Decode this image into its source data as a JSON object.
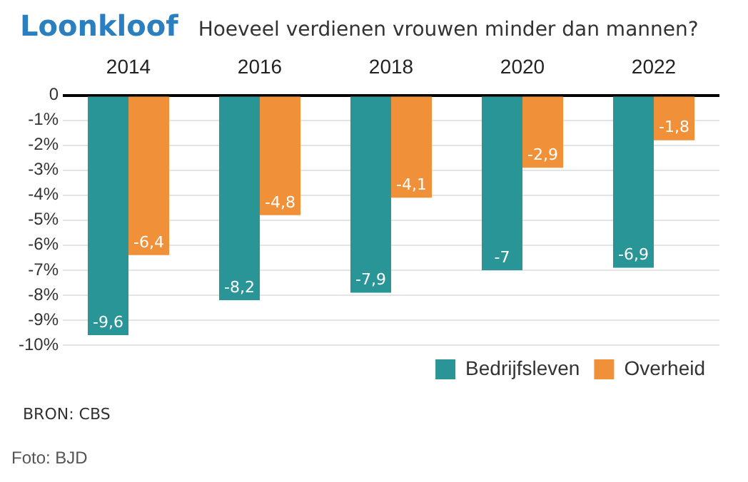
{
  "chart_data": {
    "type": "bar",
    "title": "Loonkloof",
    "subtitle": "Hoeveel verdienen vrouwen minder dan mannen?",
    "categories": [
      "2014",
      "2016",
      "2018",
      "2020",
      "2022"
    ],
    "series": [
      {
        "name": "Bedrijfsleven",
        "color": "#2a9596",
        "values": [
          -9.6,
          -8.2,
          -7.9,
          -7,
          -6.9
        ],
        "value_labels": [
          "-9,6",
          "-8,2",
          "-7,9",
          "-7",
          "-6,9"
        ]
      },
      {
        "name": "Overheid",
        "color": "#f0913a",
        "values": [
          -6.4,
          -4.8,
          -4.1,
          -2.9,
          -1.8
        ],
        "value_labels": [
          "-6,4",
          "-4,8",
          "-4,1",
          "-2,9",
          "-1,8"
        ]
      }
    ],
    "ylim": [
      -10,
      0
    ],
    "yticks": [
      0,
      {
        "value": -1,
        "label": "-1%"
      },
      {
        "value": -2,
        "label": "-2%"
      },
      {
        "value": -3,
        "label": "-3%"
      },
      {
        "value": -4,
        "label": "-4%"
      },
      {
        "value": -5,
        "label": "-5%"
      },
      {
        "value": -6,
        "label": "-6%"
      },
      {
        "value": -7,
        "label": "-7%"
      },
      {
        "value": -8,
        "label": "-8%"
      },
      {
        "value": -9,
        "label": "-9%"
      },
      {
        "value": -10,
        "label": "-10%"
      }
    ],
    "grid": "y",
    "legend": "bottom right",
    "annotations": [
      "BRON: CBS",
      "Foto: BJD"
    ]
  }
}
